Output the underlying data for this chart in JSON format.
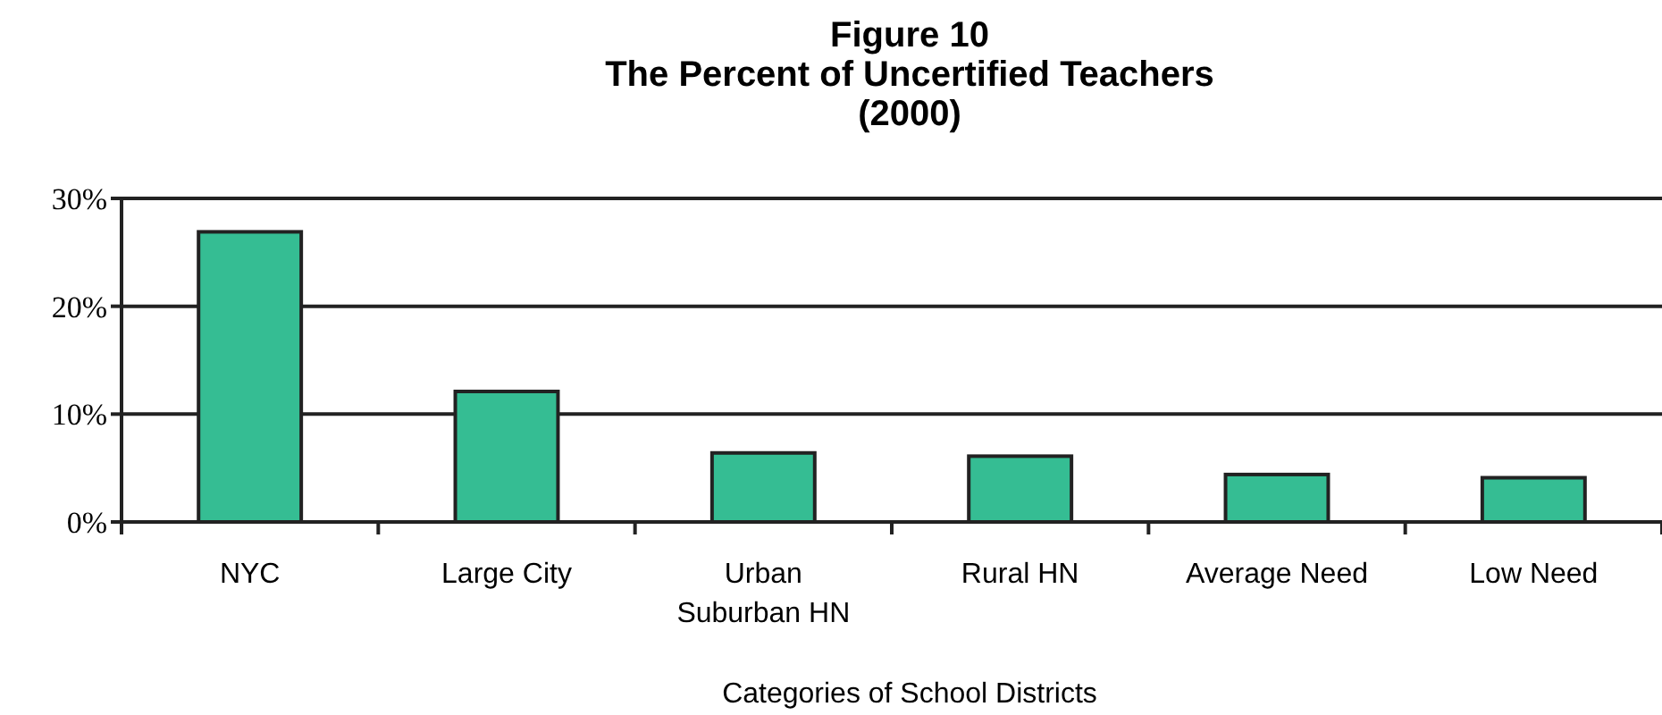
{
  "chart_data": {
    "type": "bar",
    "title": "Figure 10\nThe Percent of Uncertified Teachers\n(2000)",
    "xlabel": "Categories of School Districts",
    "categories": [
      "NYC",
      "Large City",
      "Urban Suburban HN",
      "Rural HN",
      "Average Need",
      "Low Need"
    ],
    "values": [
      26.9,
      12.1,
      6.4,
      6.1,
      4.4,
      4.1
    ],
    "color": "#35bd93",
    "ylim": [
      0,
      30
    ],
    "yticks": [
      {
        "value": 0,
        "label": "0%"
      },
      {
        "value": 10,
        "label": "10%"
      },
      {
        "value": 20,
        "label": "20%"
      },
      {
        "value": 30,
        "label": "30%"
      }
    ],
    "grid": "y"
  }
}
